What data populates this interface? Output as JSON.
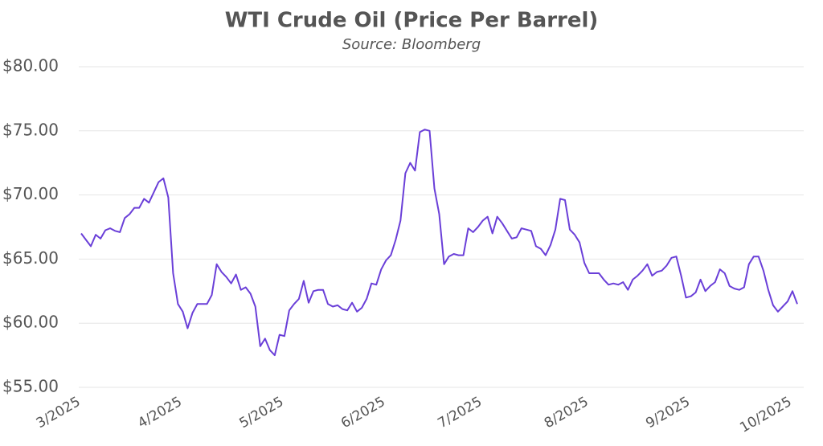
{
  "chart_data": {
    "type": "line",
    "title": "WTI Crude Oil (Price Per Barrel)",
    "subtitle": "Source: Bloomberg",
    "categories": [
      "3/2025",
      null,
      null,
      null,
      null,
      null,
      null,
      null,
      null,
      null,
      null,
      null,
      null,
      null,
      null,
      null,
      null,
      null,
      null,
      null,
      null,
      "4/2025",
      null,
      null,
      null,
      null,
      null,
      null,
      null,
      null,
      null,
      null,
      null,
      null,
      null,
      null,
      null,
      null,
      null,
      null,
      null,
      null,
      "5/2025",
      null,
      null,
      null,
      null,
      null,
      null,
      null,
      null,
      null,
      null,
      null,
      null,
      null,
      null,
      null,
      null,
      null,
      null,
      null,
      null,
      "6/2025",
      null,
      null,
      null,
      null,
      null,
      null,
      null,
      null,
      null,
      null,
      null,
      null,
      null,
      null,
      null,
      null,
      null,
      null,
      null,
      "7/2025",
      null,
      null,
      null,
      null,
      null,
      null,
      null,
      null,
      null,
      null,
      null,
      null,
      null,
      null,
      null,
      null,
      null,
      null,
      null,
      null,
      null,
      "8/2025",
      null,
      null,
      null,
      null,
      null,
      null,
      null,
      null,
      null,
      null,
      null,
      null,
      null,
      null,
      null,
      null,
      null,
      null,
      null,
      null,
      "9/2025",
      null,
      null,
      null,
      null,
      null,
      null,
      null,
      null,
      null,
      null,
      null,
      null,
      null,
      null,
      null,
      null,
      null,
      null,
      null,
      null,
      "10/2025",
      null
    ],
    "series": [
      {
        "color": "#6a3fd8",
        "values": [
          67.0,
          66.5,
          66.0,
          66.9,
          66.6,
          67.25,
          67.4,
          67.2,
          67.1,
          68.2,
          68.5,
          69.0,
          69.0,
          69.7,
          69.4,
          70.2,
          71.0,
          71.3,
          69.8,
          63.9,
          61.5,
          60.9,
          59.6,
          60.8,
          61.5,
          61.5,
          61.5,
          62.2,
          64.6,
          64.0,
          63.6,
          63.1,
          63.8,
          62.6,
          62.8,
          62.3,
          61.3,
          58.2,
          58.8,
          57.9,
          57.5,
          59.1,
          59.0,
          61.0,
          61.5,
          61.9,
          63.3,
          61.6,
          62.5,
          62.6,
          62.6,
          61.5,
          61.3,
          61.4,
          61.1,
          61.0,
          61.6,
          60.9,
          61.2,
          61.9,
          63.1,
          63.0,
          64.2,
          64.9,
          65.3,
          66.5,
          68.0,
          71.7,
          72.5,
          71.9,
          74.9,
          75.1,
          75.0,
          70.5,
          68.5,
          64.6,
          65.2,
          65.4,
          65.3,
          65.3,
          67.4,
          67.1,
          67.5,
          68.0,
          68.3,
          67.0,
          68.3,
          67.8,
          67.2,
          66.6,
          66.7,
          67.4,
          67.3,
          67.2,
          66.0,
          65.8,
          65.3,
          66.1,
          67.3,
          69.7,
          69.6,
          67.3,
          66.9,
          66.3,
          64.7,
          63.9,
          63.9,
          63.9,
          63.4,
          63.0,
          63.1,
          63.0,
          63.2,
          62.6,
          63.4,
          63.7,
          64.1,
          64.6,
          63.7,
          64.0,
          64.1,
          64.5,
          65.1,
          65.2,
          63.7,
          62.0,
          62.1,
          62.4,
          63.4,
          62.5,
          62.9,
          63.2,
          64.2,
          63.9,
          62.9,
          62.7,
          62.6,
          62.8,
          64.6,
          65.2,
          65.2,
          64.1,
          62.6,
          61.4,
          60.9,
          61.3,
          61.7,
          62.5,
          61.5
        ]
      }
    ],
    "ylim": [
      55,
      80
    ],
    "yticks": [
      {
        "value": 55,
        "label": "$55.00"
      },
      {
        "value": 60,
        "label": "$60.00"
      },
      {
        "value": 65,
        "label": "$65.00"
      },
      {
        "value": 70,
        "label": "$70.00"
      },
      {
        "value": 75,
        "label": "$75.00"
      },
      {
        "value": 80,
        "label": "$80.00"
      }
    ],
    "grid": true
  }
}
